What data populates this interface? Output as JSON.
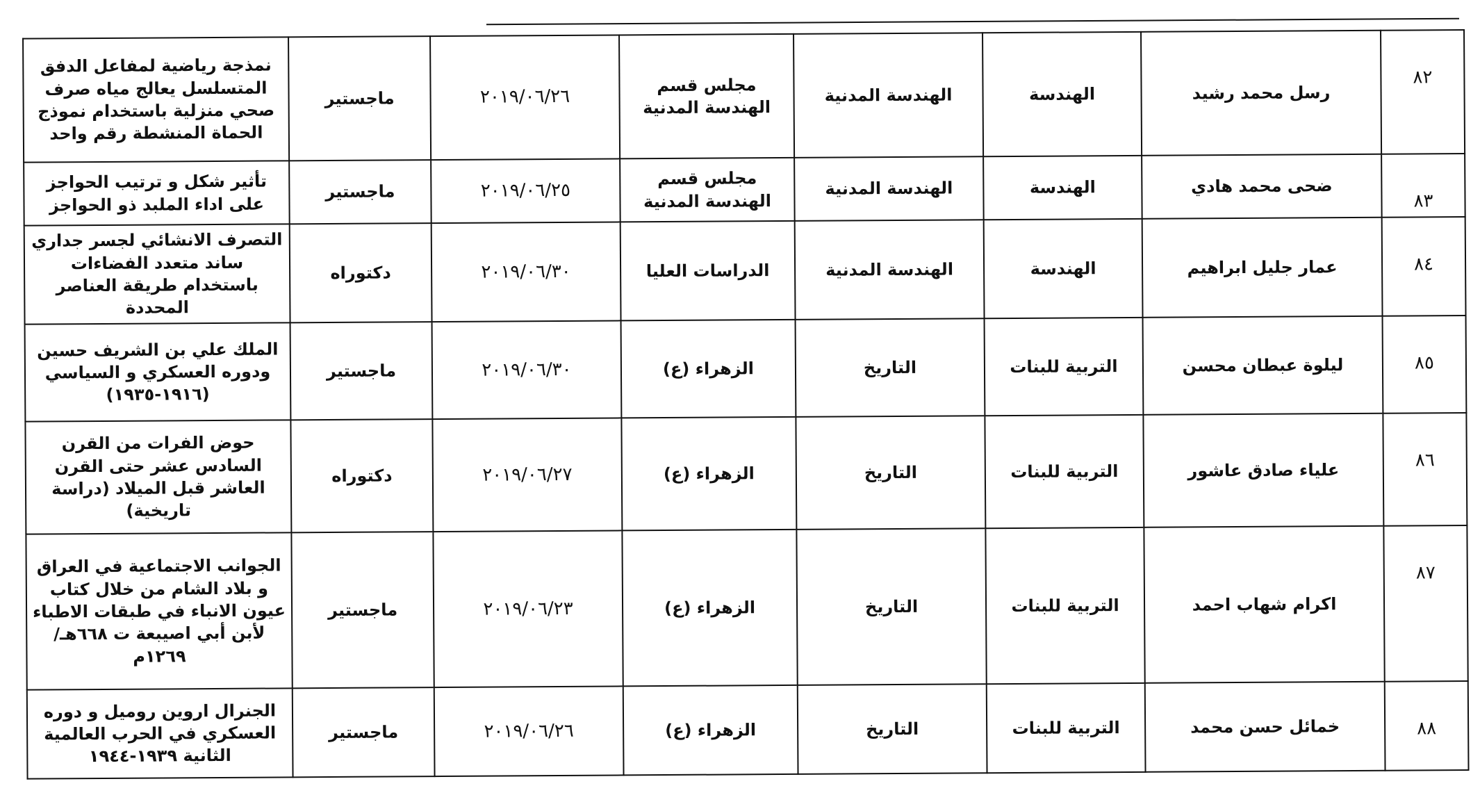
{
  "rows": [
    {
      "num": "٨٢",
      "name": "رسل محمد رشيد",
      "college": "الهندسة",
      "dept": "الهندسة المدنية",
      "council": "مجلس قسم الهندسة المدنية",
      "date": "٢٠١٩/٠٦/٢٦",
      "degree": "ماجستير",
      "title": "نمذجة رياضية لمفاعل الدفق المتسلسل يعالج مياه صرف صحي منزلية باستخدام نموذج الحماة المنشطة رقم واحد"
    },
    {
      "num": "٨٣",
      "name": "ضحى محمد هادي",
      "college": "الهندسة",
      "dept": "الهندسة المدنية",
      "council": "مجلس قسم الهندسة المدنية",
      "date": "٢٠١٩/٠٦/٢٥",
      "degree": "ماجستير",
      "title": "تأثير شكل و ترتيب الحواجز على اداء الملبد ذو الحواجز"
    },
    {
      "num": "٨٤",
      "name": "عمار جليل ابراهيم",
      "college": "الهندسة",
      "dept": "الهندسة المدنية",
      "council": "الدراسات العليا",
      "date": "٢٠١٩/٠٦/٣٠",
      "degree": "دكتوراه",
      "title": "التصرف الانشائي لجسر جداري ساند متعدد الفضاءات باستخدام طريقة العناصر المحددة"
    },
    {
      "num": "٨٥",
      "name": "ليلوة عبطان محسن",
      "college": "التربية للبنات",
      "dept": "التاريخ",
      "council": "الزهراء (ع)",
      "date": "٢٠١٩/٠٦/٣٠",
      "degree": "ماجستير",
      "title": "الملك علي بن الشريف حسين ودوره العسكري و السياسي (١٩١٦-١٩٣٥)"
    },
    {
      "num": "٨٦",
      "name": "علياء صادق عاشور",
      "college": "التربية للبنات",
      "dept": "التاريخ",
      "council": "الزهراء (ع)",
      "date": "٢٠١٩/٠٦/٢٧",
      "degree": "دكتوراه",
      "title": "حوض الفرات من القرن السادس عشر حتى القرن العاشر قبل الميلاد (دراسة تاريخية)"
    },
    {
      "num": "٨٧",
      "name": "اكرام شهاب احمد",
      "college": "التربية للبنات",
      "dept": "التاريخ",
      "council": "الزهراء (ع)",
      "date": "٢٠١٩/٠٦/٢٣",
      "degree": "ماجستير",
      "title": "الجوانب الاجتماعية في العراق و بلاد الشام من خلال كتاب عيون الانباء في طبقات الاطباء لأبن أبي اصيبعة ت ٦٦٨هـ/١٢٦٩م"
    },
    {
      "num": "٨٨",
      "name": "خمائل حسن محمد",
      "college": "التربية للبنات",
      "dept": "التاريخ",
      "council": "الزهراء (ع)",
      "date": "٢٠١٩/٠٦/٢٦",
      "degree": "ماجستير",
      "title": "الجنرال اروين روميل و دوره العسكري في الحرب العالمية الثانية ١٩٣٩-١٩٤٤"
    }
  ]
}
